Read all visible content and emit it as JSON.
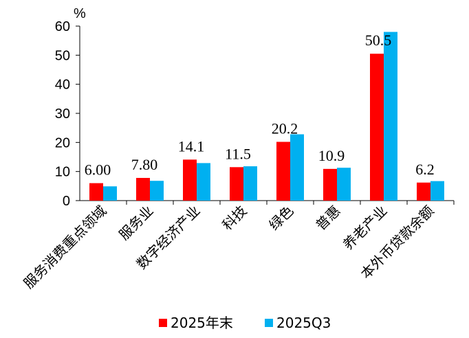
{
  "chart_data": {
    "type": "bar",
    "unit_label": "%",
    "ylim": [
      0,
      60
    ],
    "yticks": [
      "0",
      "10",
      "20",
      "30",
      "40",
      "50",
      "60"
    ],
    "grid": false,
    "legend_position": "bottom",
    "categories": [
      "服务消费重点领域",
      "服务业",
      "数字经济产业",
      "科技",
      "绿色",
      "普惠",
      "养老产业",
      "本外币贷款余额"
    ],
    "series": [
      {
        "name": "2025年末",
        "color": "#ff0000",
        "values": [
          6.0,
          7.8,
          14.1,
          11.5,
          20.2,
          10.9,
          50.5,
          6.2
        ],
        "data_labels": [
          "6.00",
          "7.80",
          "14.1",
          "11.5",
          "20.2",
          "10.9",
          "50.5",
          "6.2"
        ]
      },
      {
        "name": "2025Q3",
        "color": "#00b0f0",
        "values": [
          4.9,
          6.8,
          12.9,
          11.8,
          22.8,
          11.3,
          58.0,
          6.7
        ]
      }
    ]
  }
}
